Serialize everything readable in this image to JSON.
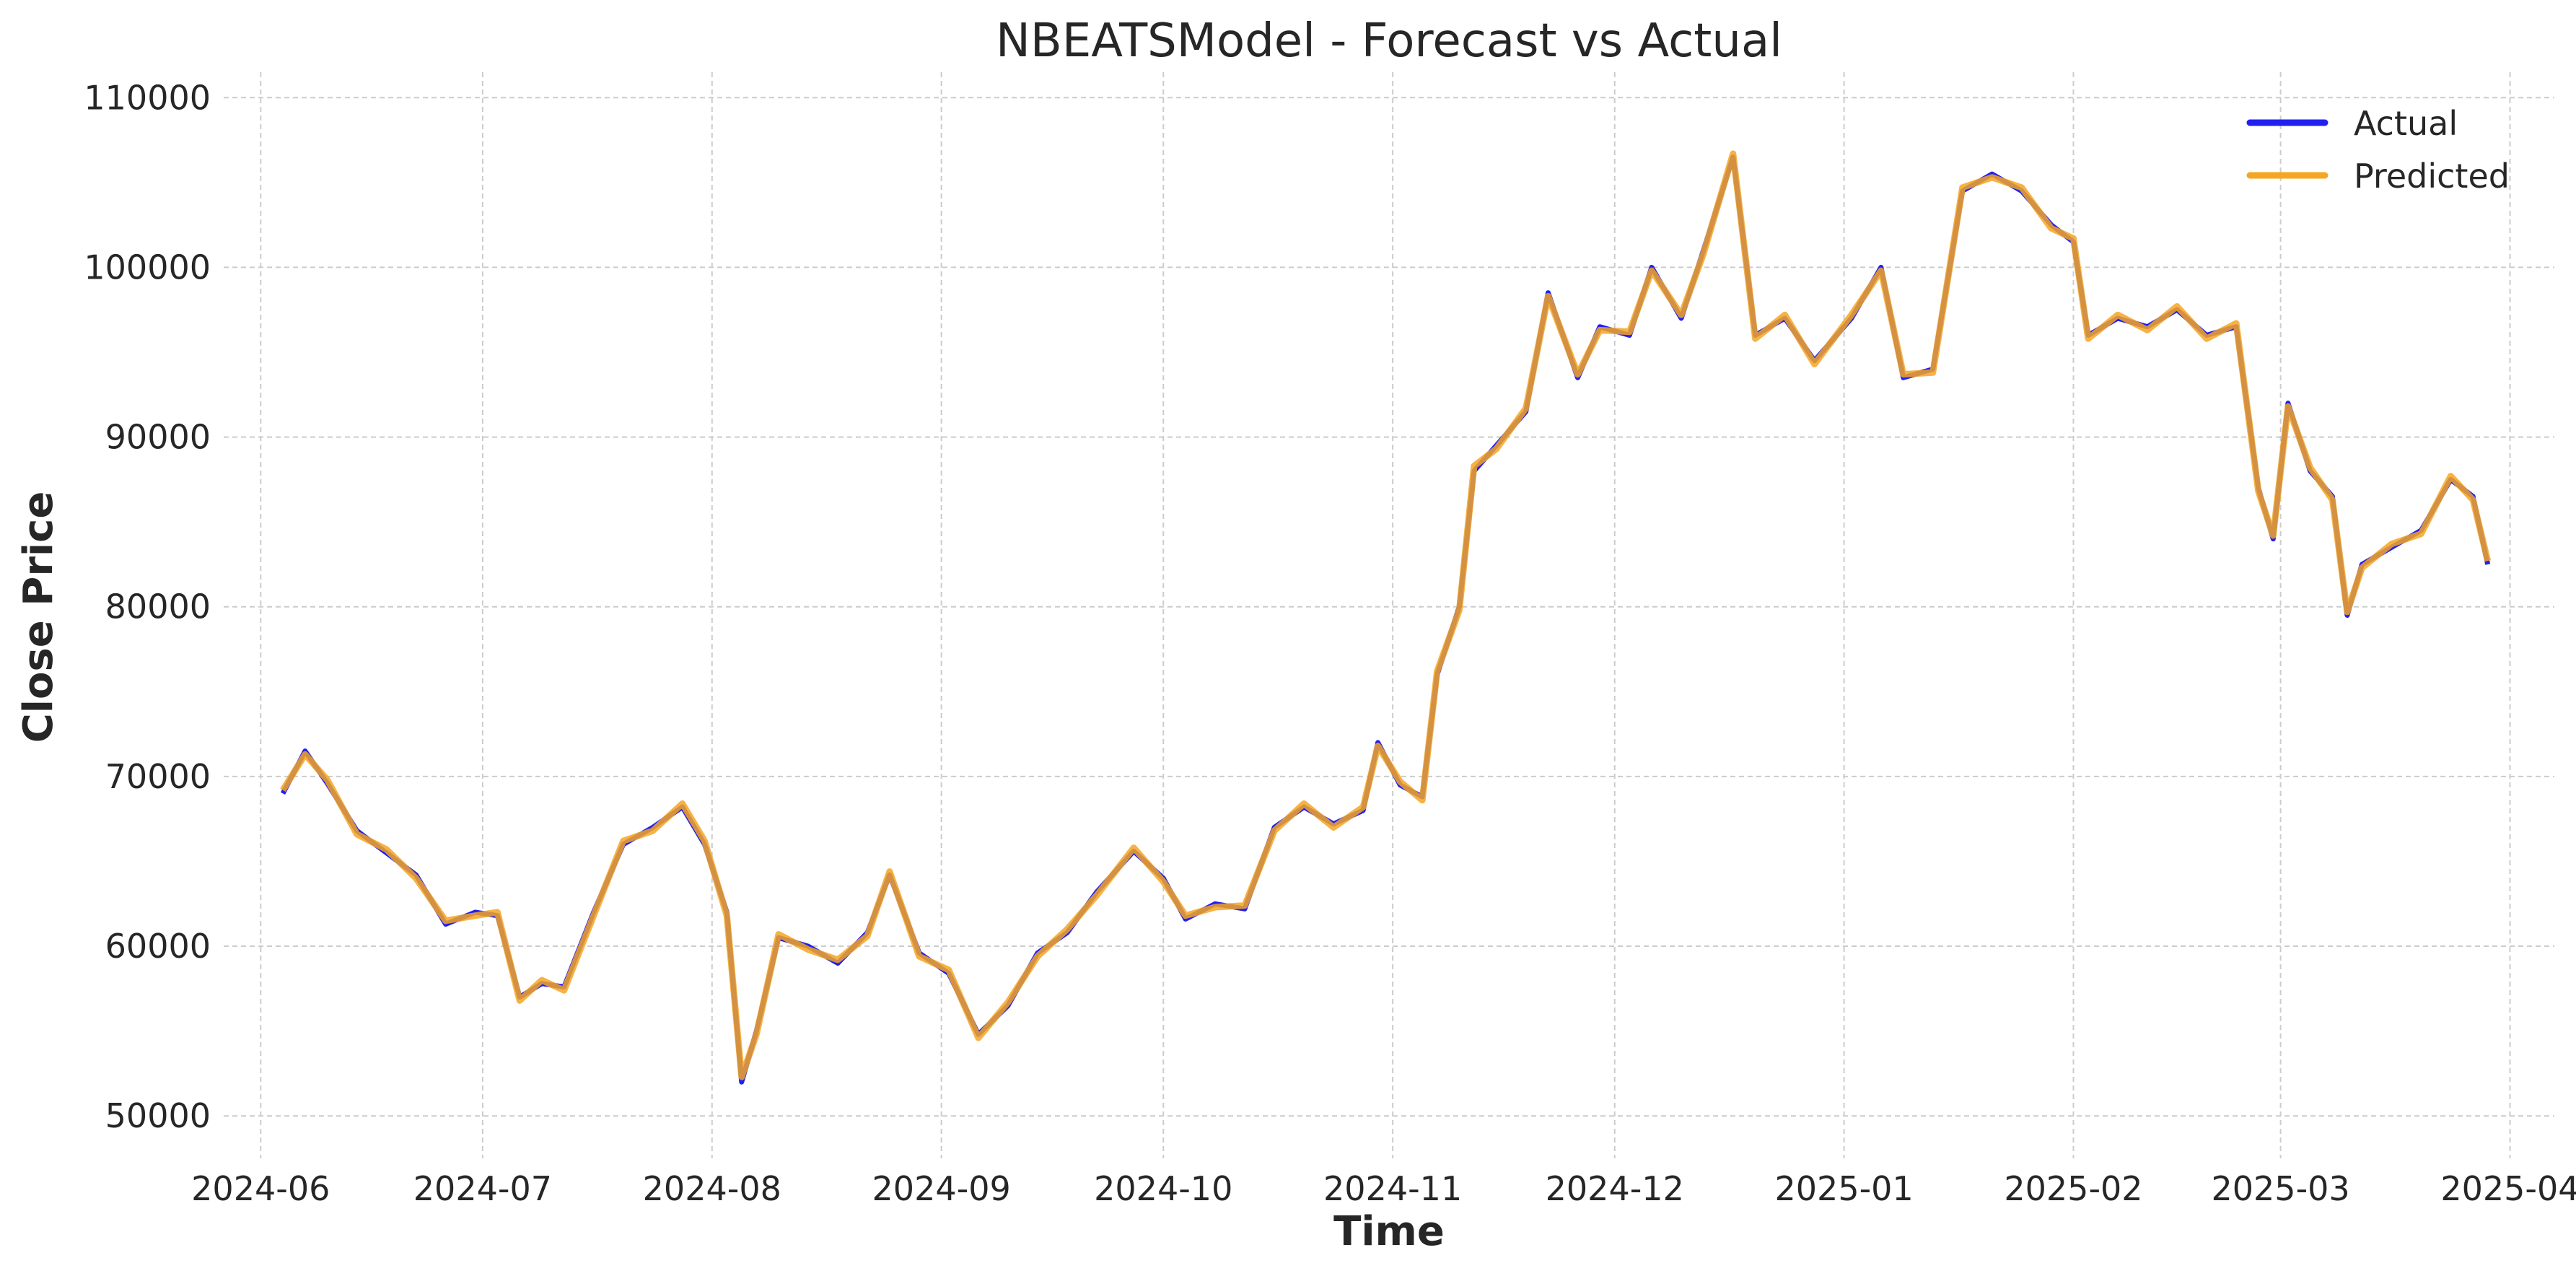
{
  "chart_data": {
    "type": "line",
    "title": "NBEATSModel - Forecast vs Actual",
    "xlabel": "Time",
    "ylabel": "Close Price",
    "xlim": [
      "2024-05-27",
      "2025-04-07"
    ],
    "ylim": [
      47500,
      111500
    ],
    "x_ticks": [
      "2024-06",
      "2024-07",
      "2024-08",
      "2024-09",
      "2024-10",
      "2024-11",
      "2024-12",
      "2025-01",
      "2025-02",
      "2025-03",
      "2025-04"
    ],
    "y_ticks": [
      50000,
      60000,
      70000,
      80000,
      90000,
      100000,
      110000
    ],
    "grid": true,
    "legend_position": "top-right",
    "series": [
      {
        "name": "Actual",
        "color": "#2020f0",
        "points": [
          [
            "2024-06-04",
            69000
          ],
          [
            "2024-06-07",
            71500
          ],
          [
            "2024-06-10",
            69600
          ],
          [
            "2024-06-14",
            66800
          ],
          [
            "2024-06-18",
            65500
          ],
          [
            "2024-06-22",
            64200
          ],
          [
            "2024-06-26",
            61300
          ],
          [
            "2024-06-30",
            62000
          ],
          [
            "2024-07-03",
            61800
          ],
          [
            "2024-07-06",
            57000
          ],
          [
            "2024-07-09",
            57800
          ],
          [
            "2024-07-12",
            57600
          ],
          [
            "2024-07-16",
            62000
          ],
          [
            "2024-07-20",
            66000
          ],
          [
            "2024-07-24",
            67000
          ],
          [
            "2024-07-28",
            68200
          ],
          [
            "2024-07-31",
            66000
          ],
          [
            "2024-08-03",
            62000
          ],
          [
            "2024-08-05",
            52000
          ],
          [
            "2024-08-07",
            55000
          ],
          [
            "2024-08-10",
            60500
          ],
          [
            "2024-08-14",
            60000
          ],
          [
            "2024-08-18",
            59000
          ],
          [
            "2024-08-22",
            60800
          ],
          [
            "2024-08-25",
            64200
          ],
          [
            "2024-08-29",
            59600
          ],
          [
            "2024-09-02",
            58400
          ],
          [
            "2024-09-06",
            54800
          ],
          [
            "2024-09-10",
            56500
          ],
          [
            "2024-09-14",
            59600
          ],
          [
            "2024-09-18",
            60800
          ],
          [
            "2024-09-22",
            63200
          ],
          [
            "2024-09-27",
            65600
          ],
          [
            "2024-10-01",
            64000
          ],
          [
            "2024-10-04",
            61600
          ],
          [
            "2024-10-08",
            62500
          ],
          [
            "2024-10-12",
            62200
          ],
          [
            "2024-10-16",
            67000
          ],
          [
            "2024-10-20",
            68200
          ],
          [
            "2024-10-24",
            67200
          ],
          [
            "2024-10-28",
            68000
          ],
          [
            "2024-10-30",
            72000
          ],
          [
            "2024-11-02",
            69500
          ],
          [
            "2024-11-05",
            68800
          ],
          [
            "2024-11-07",
            76000
          ],
          [
            "2024-11-10",
            80000
          ],
          [
            "2024-11-12",
            88000
          ],
          [
            "2024-11-15",
            89500
          ],
          [
            "2024-11-19",
            91500
          ],
          [
            "2024-11-22",
            98500
          ],
          [
            "2024-11-26",
            93500
          ],
          [
            "2024-11-29",
            96500
          ],
          [
            "2024-12-03",
            96000
          ],
          [
            "2024-12-06",
            100000
          ],
          [
            "2024-12-10",
            97000
          ],
          [
            "2024-12-13",
            101000
          ],
          [
            "2024-12-17",
            106500
          ],
          [
            "2024-12-20",
            96000
          ],
          [
            "2024-12-24",
            97000
          ],
          [
            "2024-12-28",
            94500
          ],
          [
            "2025-01-02",
            97000
          ],
          [
            "2025-01-06",
            100000
          ],
          [
            "2025-01-09",
            93500
          ],
          [
            "2025-01-13",
            94000
          ],
          [
            "2025-01-17",
            104500
          ],
          [
            "2025-01-21",
            105500
          ],
          [
            "2025-01-25",
            104500
          ],
          [
            "2025-01-29",
            102500
          ],
          [
            "2025-02-01",
            101500
          ],
          [
            "2025-02-03",
            96000
          ],
          [
            "2025-02-07",
            97000
          ],
          [
            "2025-02-11",
            96500
          ],
          [
            "2025-02-15",
            97500
          ],
          [
            "2025-02-19",
            96000
          ],
          [
            "2025-02-23",
            96500
          ],
          [
            "2025-02-26",
            87000
          ],
          [
            "2025-02-28",
            84000
          ],
          [
            "2025-03-02",
            92000
          ],
          [
            "2025-03-05",
            88000
          ],
          [
            "2025-03-08",
            86500
          ],
          [
            "2025-03-10",
            79500
          ],
          [
            "2025-03-12",
            82500
          ],
          [
            "2025-03-16",
            83500
          ],
          [
            "2025-03-20",
            84500
          ],
          [
            "2025-03-24",
            87500
          ],
          [
            "2025-03-27",
            86500
          ],
          [
            "2025-03-29",
            82500
          ]
        ]
      },
      {
        "name": "Predicted",
        "color": "#f5a623",
        "points": [
          [
            "2024-06-04",
            69200
          ],
          [
            "2024-06-07",
            71300
          ],
          [
            "2024-06-10",
            69800
          ],
          [
            "2024-06-14",
            66600
          ],
          [
            "2024-06-18",
            65700
          ],
          [
            "2024-06-22",
            64000
          ],
          [
            "2024-06-26",
            61500
          ],
          [
            "2024-06-30",
            61800
          ],
          [
            "2024-07-03",
            62000
          ],
          [
            "2024-07-06",
            56800
          ],
          [
            "2024-07-09",
            58000
          ],
          [
            "2024-07-12",
            57400
          ],
          [
            "2024-07-16",
            61800
          ],
          [
            "2024-07-20",
            66200
          ],
          [
            "2024-07-24",
            66800
          ],
          [
            "2024-07-28",
            68400
          ],
          [
            "2024-07-31",
            66200
          ],
          [
            "2024-08-03",
            61800
          ],
          [
            "2024-08-05",
            52300
          ],
          [
            "2024-08-07",
            54800
          ],
          [
            "2024-08-10",
            60700
          ],
          [
            "2024-08-14",
            59800
          ],
          [
            "2024-08-18",
            59200
          ],
          [
            "2024-08-22",
            60600
          ],
          [
            "2024-08-25",
            64400
          ],
          [
            "2024-08-29",
            59400
          ],
          [
            "2024-09-02",
            58600
          ],
          [
            "2024-09-06",
            54600
          ],
          [
            "2024-09-10",
            56700
          ],
          [
            "2024-09-14",
            59400
          ],
          [
            "2024-09-18",
            61000
          ],
          [
            "2024-09-22",
            63000
          ],
          [
            "2024-09-27",
            65800
          ],
          [
            "2024-10-01",
            63800
          ],
          [
            "2024-10-04",
            61800
          ],
          [
            "2024-10-08",
            62300
          ],
          [
            "2024-10-12",
            62400
          ],
          [
            "2024-10-16",
            66800
          ],
          [
            "2024-10-20",
            68400
          ],
          [
            "2024-10-24",
            67000
          ],
          [
            "2024-10-28",
            68200
          ],
          [
            "2024-10-30",
            71800
          ],
          [
            "2024-11-02",
            69700
          ],
          [
            "2024-11-05",
            68600
          ],
          [
            "2024-11-07",
            76200
          ],
          [
            "2024-11-10",
            79800
          ],
          [
            "2024-11-12",
            88300
          ],
          [
            "2024-11-15",
            89300
          ],
          [
            "2024-11-19",
            91700
          ],
          [
            "2024-11-22",
            98300
          ],
          [
            "2024-11-26",
            93700
          ],
          [
            "2024-11-29",
            96300
          ],
          [
            "2024-12-03",
            96200
          ],
          [
            "2024-12-06",
            99800
          ],
          [
            "2024-12-10",
            97200
          ],
          [
            "2024-12-13",
            100800
          ],
          [
            "2024-12-17",
            106700
          ],
          [
            "2024-12-20",
            95800
          ],
          [
            "2024-12-24",
            97200
          ],
          [
            "2024-12-28",
            94300
          ],
          [
            "2025-01-02",
            97200
          ],
          [
            "2025-01-06",
            99800
          ],
          [
            "2025-01-09",
            93700
          ],
          [
            "2025-01-13",
            93800
          ],
          [
            "2025-01-17",
            104700
          ],
          [
            "2025-01-21",
            105300
          ],
          [
            "2025-01-25",
            104700
          ],
          [
            "2025-01-29",
            102300
          ],
          [
            "2025-02-01",
            101700
          ],
          [
            "2025-02-03",
            95800
          ],
          [
            "2025-02-07",
            97200
          ],
          [
            "2025-02-11",
            96300
          ],
          [
            "2025-02-15",
            97700
          ],
          [
            "2025-02-19",
            95800
          ],
          [
            "2025-02-23",
            96700
          ],
          [
            "2025-02-26",
            86800
          ],
          [
            "2025-02-28",
            84200
          ],
          [
            "2025-03-02",
            91800
          ],
          [
            "2025-03-05",
            88200
          ],
          [
            "2025-03-08",
            86300
          ],
          [
            "2025-03-10",
            79700
          ],
          [
            "2025-03-12",
            82300
          ],
          [
            "2025-03-16",
            83700
          ],
          [
            "2025-03-20",
            84300
          ],
          [
            "2025-03-24",
            87700
          ],
          [
            "2025-03-27",
            86300
          ],
          [
            "2025-03-29",
            82700
          ]
        ]
      }
    ]
  }
}
